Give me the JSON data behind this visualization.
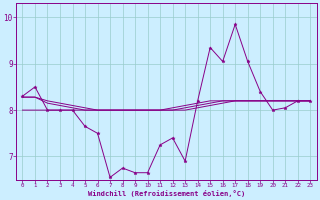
{
  "xlabel": "Windchill (Refroidissement éolien,°C)",
  "bg_color": "#cceeff",
  "line_color": "#880088",
  "grid_color": "#99cccc",
  "x": [
    0,
    1,
    2,
    3,
    4,
    5,
    6,
    7,
    8,
    9,
    10,
    11,
    12,
    13,
    14,
    15,
    16,
    17,
    18,
    19,
    20,
    21,
    22,
    23
  ],
  "y_main": [
    8.3,
    8.5,
    8.0,
    8.0,
    8.0,
    7.65,
    7.5,
    6.55,
    6.75,
    6.65,
    6.65,
    7.25,
    7.4,
    6.9,
    8.2,
    9.35,
    9.05,
    9.85,
    9.05,
    8.4,
    8.0,
    8.05,
    8.2,
    8.2
  ],
  "y_flat1": [
    8.28,
    8.28,
    8.2,
    8.15,
    8.1,
    8.05,
    8.0,
    8.0,
    8.0,
    8.0,
    8.0,
    8.0,
    8.0,
    8.05,
    8.1,
    8.15,
    8.2,
    8.2,
    8.2,
    8.2,
    8.2,
    8.2,
    8.2,
    8.2
  ],
  "y_flat2": [
    8.28,
    8.28,
    8.15,
    8.1,
    8.05,
    8.0,
    8.0,
    8.0,
    8.0,
    8.0,
    8.0,
    8.0,
    8.05,
    8.1,
    8.15,
    8.2,
    8.2,
    8.2,
    8.2,
    8.2,
    8.2,
    8.2,
    8.2,
    8.2
  ],
  "y_flat3": [
    8.0,
    8.0,
    8.0,
    8.0,
    8.0,
    8.0,
    8.0,
    8.0,
    8.0,
    8.0,
    8.0,
    8.0,
    8.0,
    8.0,
    8.05,
    8.1,
    8.15,
    8.2,
    8.2,
    8.2,
    8.2,
    8.2,
    8.2,
    8.2
  ],
  "ylim": [
    6.5,
    10.3
  ],
  "yticks": [
    7,
    8,
    9,
    10
  ],
  "xticks": [
    0,
    1,
    2,
    3,
    4,
    5,
    6,
    7,
    8,
    9,
    10,
    11,
    12,
    13,
    14,
    15,
    16,
    17,
    18,
    19,
    20,
    21,
    22,
    23
  ]
}
